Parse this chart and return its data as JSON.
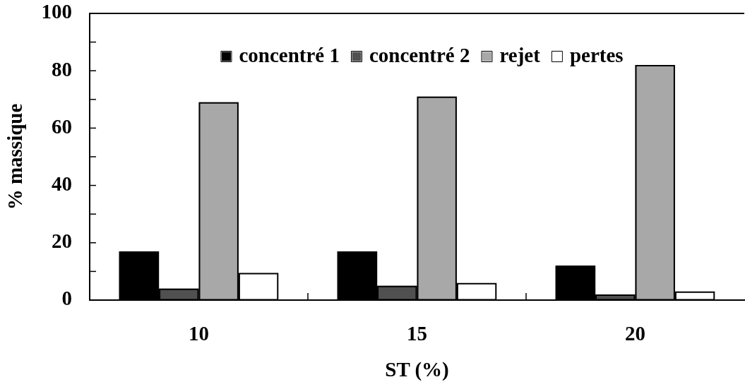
{
  "chart_data": {
    "type": "bar",
    "xlabel": "ST (%)",
    "ylabel": "% massique",
    "categories": [
      "10",
      "15",
      "20"
    ],
    "series": [
      {
        "name": "concentré 1",
        "color": "#000000",
        "values": [
          17,
          17,
          12
        ]
      },
      {
        "name": "concentré 2",
        "color": "#505050",
        "values": [
          4,
          5,
          2
        ]
      },
      {
        "name": "rejet",
        "color": "#a8a8a8",
        "values": [
          69,
          71,
          82
        ]
      },
      {
        "name": "pertes",
        "color": "#ffffff",
        "values": [
          9.5,
          6,
          3
        ]
      }
    ],
    "ylim": [
      0,
      100
    ],
    "yticks": [
      0,
      {
        "value": 10,
        "label": null
      },
      20,
      {
        "value": 30,
        "label": null
      },
      40,
      {
        "value": 50,
        "label": null
      },
      60,
      {
        "value": 70,
        "label": null
      },
      80,
      {
        "value": 90,
        "label": null
      },
      100
    ],
    "grid": false,
    "legend": "top"
  }
}
